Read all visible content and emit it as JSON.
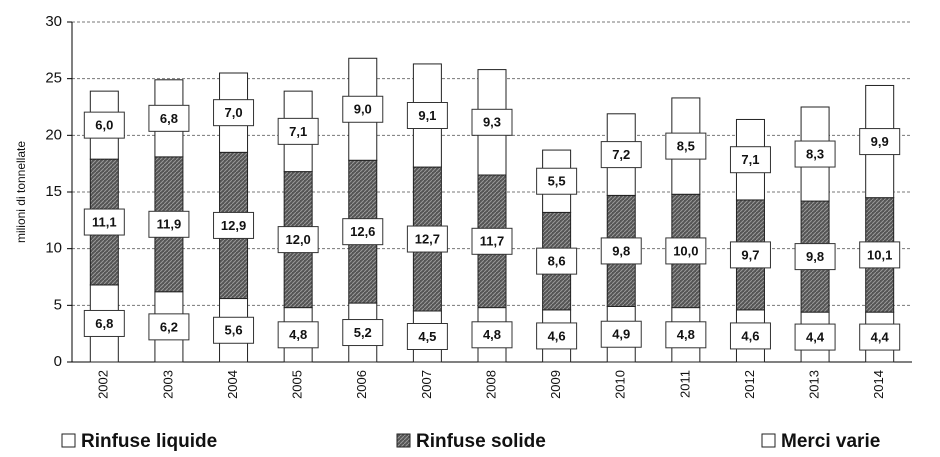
{
  "chart_data": {
    "type": "stacked_bar",
    "y_label": "milioni di tonnellate",
    "categories": [
      "2002",
      "2003",
      "2004",
      "2005",
      "2006",
      "2007",
      "2008",
      "2009",
      "2010",
      "2011",
      "2012",
      "2013",
      "2014"
    ],
    "series": [
      {
        "name": "Rinfuse liquide",
        "color": "#ffffff",
        "values": [
          6.8,
          6.2,
          5.6,
          4.8,
          5.2,
          4.5,
          4.8,
          4.6,
          4.9,
          4.8,
          4.6,
          4.4,
          4.4
        ],
        "value_labels": [
          "6,8",
          "6,2",
          "5,6",
          "4,8",
          "5,2",
          "4,5",
          "4,8",
          "4,6",
          "4,9",
          "4,8",
          "4,6",
          "4,4",
          "4,4"
        ]
      },
      {
        "name": "Rinfuse solide",
        "color": "#555555",
        "values": [
          11.1,
          11.9,
          12.9,
          12.0,
          12.6,
          12.7,
          11.7,
          8.6,
          9.8,
          10.0,
          9.7,
          9.8,
          10.1
        ],
        "value_labels": [
          "11,1",
          "11,9",
          "12,9",
          "12,0",
          "12,6",
          "12,7",
          "11,7",
          "8,6",
          "9,8",
          "10,0",
          "9,7",
          "9,8",
          "10,1"
        ]
      },
      {
        "name": "Merci varie",
        "color": "#ffffff",
        "values": [
          6.0,
          6.8,
          7.0,
          7.1,
          9.0,
          9.1,
          9.3,
          5.5,
          7.2,
          8.5,
          7.1,
          8.3,
          9.9
        ],
        "value_labels": [
          "6,0",
          "6,8",
          "7,0",
          "7,1",
          "9,0",
          "9,1",
          "9,3",
          "5,5",
          "7,2",
          "8,5",
          "7,1",
          "8,3",
          "9,9"
        ]
      }
    ],
    "ylim": [
      0,
      30
    ],
    "yticks": [
      0,
      5,
      10,
      15,
      20,
      25,
      30
    ],
    "grid": true
  }
}
